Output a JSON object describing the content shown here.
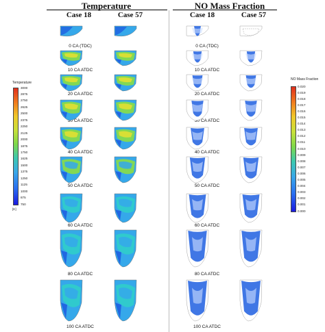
{
  "headers": {
    "temperature": "Temperature",
    "no_mass_fraction": "NO Mass Fraction",
    "case_a": "Case 18",
    "case_b": "Case 57"
  },
  "crank_angles": [
    "0 CA (TDC)",
    "10 CA ATDC",
    "20 CA ATDC",
    "30 CA ATDC",
    "40 CA ATDC",
    "50 CA ATDC",
    "60 CA ATDC",
    "80 CA ATDC",
    "100 CA ATDC"
  ],
  "temperature_legend": {
    "title": "Temperature",
    "unit": "[K]",
    "ticks": [
      "3000",
      "2875",
      "2750",
      "2625",
      "2500",
      "2375",
      "2250",
      "2125",
      "2000",
      "1875",
      "1750",
      "1625",
      "1500",
      "1375",
      "1250",
      "1125",
      "1000",
      "875",
      "750"
    ]
  },
  "no_legend": {
    "title": "NO Mass Fraction",
    "ticks": [
      "0.020",
      "0.019",
      "0.018",
      "0.017",
      "0.016",
      "0.015",
      "0.014",
      "0.013",
      "0.012",
      "0.011",
      "0.010",
      "0.009",
      "0.008",
      "0.007",
      "0.006",
      "0.005",
      "0.004",
      "0.003",
      "0.002",
      "0.001",
      "0.000"
    ]
  },
  "colors": {
    "cold": "#1f5fe0",
    "cool": "#35a8ea",
    "mid": "#2fd0c8",
    "warm": "#8fe03a",
    "hot": "#e8e030",
    "nohigh": "#1f5fe0",
    "nolow": "#cfe0ff"
  }
}
